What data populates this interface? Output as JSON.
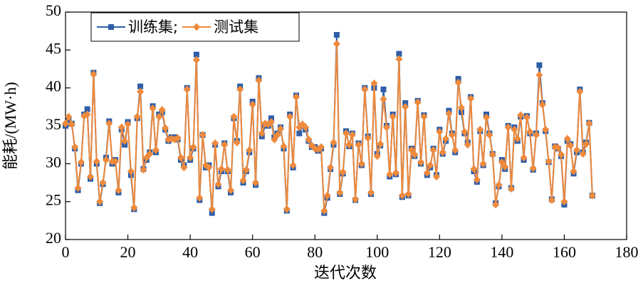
{
  "chart_data": {
    "type": "line",
    "xlabel": "迭代次数",
    "ylabel": "能耗/(MW·h)",
    "xlim": [
      0,
      180
    ],
    "xticks": [
      0,
      20,
      40,
      60,
      80,
      100,
      120,
      140,
      160,
      180
    ],
    "ylim": [
      20,
      50
    ],
    "yticks": [
      20,
      25,
      30,
      35,
      40,
      45,
      50
    ],
    "legend": "upper left",
    "x": [
      0,
      1,
      2,
      3,
      4,
      5,
      6,
      7,
      8,
      9,
      10,
      11,
      12,
      13,
      14,
      15,
      16,
      17,
      18,
      19,
      20,
      21,
      22,
      23,
      24,
      25,
      26,
      27,
      28,
      29,
      30,
      31,
      32,
      33,
      34,
      35,
      36,
      37,
      38,
      39,
      40,
      41,
      42,
      43,
      44,
      45,
      46,
      47,
      48,
      49,
      50,
      51,
      52,
      53,
      54,
      55,
      56,
      57,
      58,
      59,
      60,
      61,
      62,
      63,
      64,
      65,
      66,
      67,
      68,
      69,
      70,
      71,
      72,
      73,
      74,
      75,
      76,
      77,
      78,
      79,
      80,
      81,
      82,
      83,
      84,
      85,
      86,
      87,
      88,
      89,
      90,
      91,
      92,
      93,
      94,
      95,
      96,
      97,
      98,
      99,
      100,
      101,
      102,
      103,
      104,
      105,
      106,
      107,
      108,
      109,
      110,
      111,
      112,
      113,
      114,
      115,
      116,
      117,
      118,
      119,
      120,
      121,
      122,
      123,
      124,
      125,
      126,
      127,
      128,
      129,
      130,
      131,
      132,
      133,
      134,
      135,
      136,
      137,
      138,
      139,
      140,
      141,
      142,
      143,
      144,
      145,
      146,
      147,
      148,
      149,
      150,
      151,
      152,
      153,
      154,
      155,
      156,
      157,
      158,
      159,
      160,
      161,
      162,
      163,
      164,
      165,
      166,
      167,
      168,
      169
    ],
    "series": [
      {
        "name": "训练集;",
        "color": "#2f5ea8",
        "marker": "square",
        "values": [
          35,
          35.8,
          35.3,
          32,
          26.5,
          30,
          36.5,
          37.2,
          28,
          42,
          30,
          24.8,
          27.3,
          30.8,
          35.6,
          30,
          30.5,
          26.2,
          34.5,
          32.5,
          35.5,
          28.5,
          24,
          36,
          40.2,
          29.3,
          30.5,
          31.5,
          37.6,
          31.5,
          36.5,
          36.8,
          34.5,
          33,
          33.5,
          33.5,
          33.2,
          30.5,
          29.8,
          40,
          30.5,
          32,
          44.4,
          25.2,
          33.8,
          29.5,
          29.8,
          23.5,
          32.5,
          27,
          29,
          32.7,
          29,
          26.2,
          36,
          33,
          40.2,
          27.5,
          29,
          31.5,
          38.2,
          27.2,
          41.3,
          33.6,
          35,
          35,
          36,
          33.5,
          34,
          34.8,
          32,
          23.8,
          36.5,
          29.5,
          39,
          34,
          35,
          34.5,
          33,
          32.2,
          32.2,
          31.7,
          32,
          23.5,
          25.5,
          29.3,
          32.5,
          47,
          26,
          28.7,
          34.3,
          32.3,
          34,
          25.2,
          32.7,
          29.8,
          40,
          33.6,
          26,
          40,
          31.3,
          32.4,
          39.8,
          35,
          28.3,
          36.5,
          28.6,
          44.5,
          25.6,
          38,
          25.8,
          32,
          31,
          38.3,
          30,
          36.4,
          28.5,
          29.5,
          32,
          28.5,
          34.5,
          31.3,
          33,
          37,
          34,
          31.5,
          41.2,
          36.8,
          34,
          32.8,
          38.8,
          29,
          27.6,
          34.3,
          29.8,
          36.5,
          34,
          31.3,
          24.8,
          27,
          30.5,
          29.3,
          35,
          26.8,
          34.8,
          33,
          36.2,
          30.5,
          36.3,
          34,
          29.2,
          34,
          43,
          38,
          34.3,
          30.2,
          25.3,
          32.3,
          32,
          31,
          24.6,
          33,
          32.6,
          28.7,
          31.5,
          39.8,
          31.5,
          32.8,
          35.4,
          25.8
        ]
      },
      {
        "name": "测试集",
        "color": "#ee8a3c",
        "marker": "diamond",
        "values": [
          35.3,
          36.2,
          35.2,
          32.2,
          26.8,
          30.2,
          36.3,
          36.5,
          28.3,
          41.8,
          30.3,
          25,
          27.5,
          30.5,
          35.3,
          30.3,
          30.3,
          26.5,
          34.8,
          33,
          35.2,
          29,
          24.2,
          36.2,
          39.5,
          29.2,
          30.8,
          31.3,
          37.3,
          31.8,
          36.2,
          37.1,
          34.7,
          33.2,
          33.3,
          33.2,
          33.4,
          30.8,
          29.5,
          39.8,
          30.8,
          32.2,
          43.7,
          25.5,
          33.8,
          29.8,
          29.5,
          24,
          32.7,
          27.3,
          29.3,
          32.5,
          29.2,
          26.5,
          36.2,
          32.8,
          39.8,
          27.8,
          29.2,
          31.8,
          37.8,
          27.5,
          41,
          34,
          35.3,
          35.2,
          35.5,
          33.2,
          33.8,
          34.6,
          32.3,
          24,
          36.2,
          29.8,
          38.8,
          34.8,
          35.2,
          34.8,
          33.2,
          32.4,
          32,
          31.9,
          32.2,
          23.8,
          25.8,
          29.5,
          32.8,
          45.8,
          26.2,
          28.9,
          34,
          32.5,
          33.8,
          25.3,
          32.5,
          30,
          39.8,
          33.4,
          26.2,
          40.6,
          31,
          32.6,
          38.5,
          34.8,
          28.6,
          36.2,
          28.8,
          43.8,
          25.8,
          37.5,
          26,
          31.8,
          31.2,
          38.1,
          30.2,
          36.2,
          28.8,
          29.8,
          31.8,
          28.3,
          34.2,
          31.5,
          33.3,
          36.6,
          33.8,
          31.8,
          40.7,
          37.4,
          34.2,
          32.5,
          38.6,
          29.3,
          27.9,
          34.5,
          30,
          36.1,
          33.8,
          31.2,
          24.6,
          27.2,
          30.2,
          29.6,
          34.8,
          26.7,
          34.5,
          33.3,
          36.4,
          30.8,
          36.1,
          34.2,
          29.4,
          33.8,
          41.7,
          37.8,
          34.5,
          30.3,
          25.2,
          32.2,
          32.1,
          31.2,
          25,
          33.3,
          32.4,
          29,
          31.8,
          39.5,
          31.3,
          32.6,
          35.3,
          25.8
        ]
      }
    ]
  }
}
